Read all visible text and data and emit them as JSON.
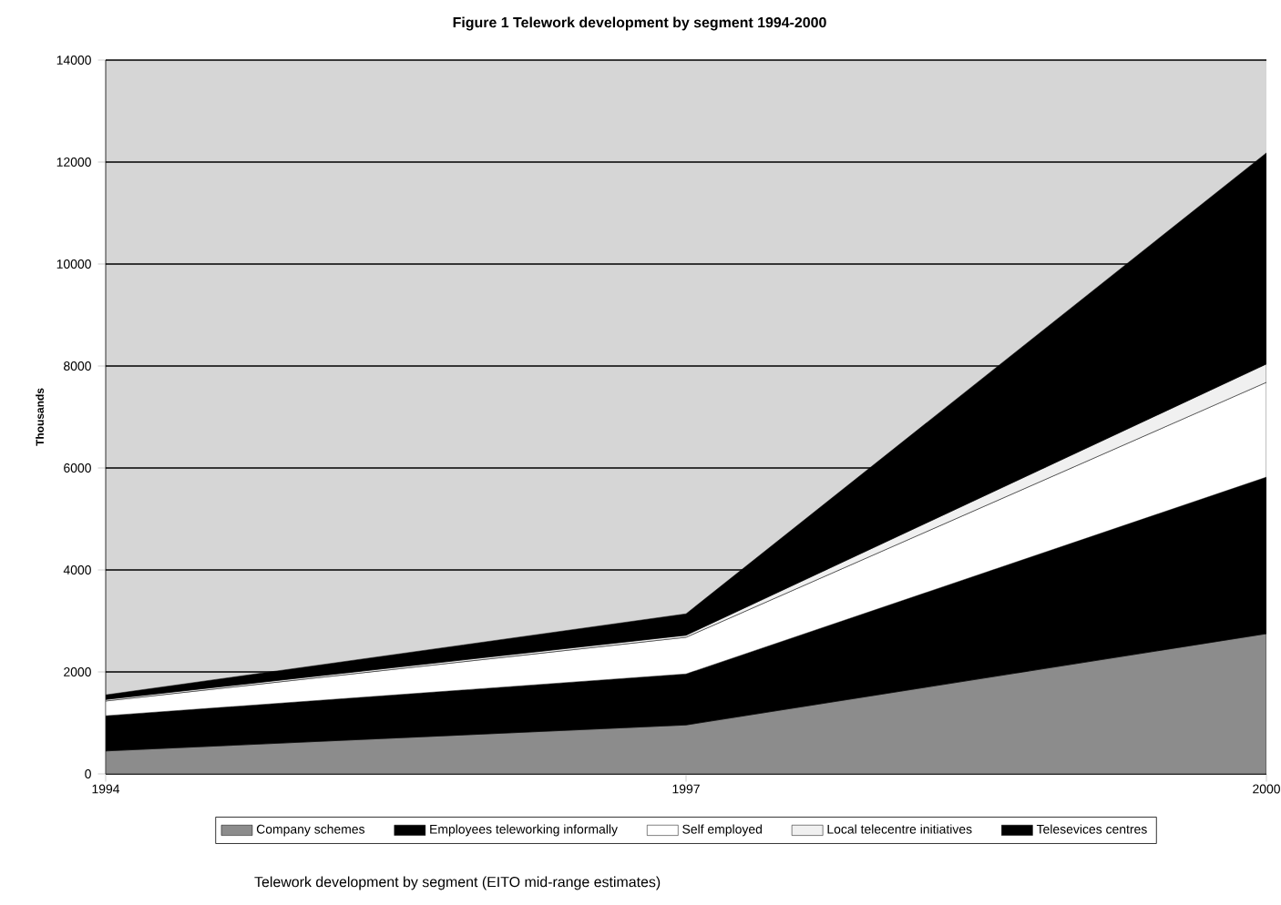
{
  "chart_data": {
    "type": "area",
    "title": "Figure 1      Telework development by segment 1994-2000",
    "ylabel": "Thousands",
    "annotations": [
      "Telework development by segment (EITO mid-range estimates)"
    ],
    "x": [
      1994,
      1997,
      2000
    ],
    "xlim": [
      1994,
      2000
    ],
    "xticks": [
      1994,
      1997,
      2000
    ],
    "ylim": [
      0,
      14000
    ],
    "yticks": [
      0,
      2000,
      4000,
      6000,
      8000,
      10000,
      12000,
      14000
    ],
    "stacked": true,
    "grid": "y",
    "legend": "bottom",
    "series": [
      {
        "name": "Company schemes",
        "color": "#8c8c8c",
        "values": [
          450,
          960,
          2750
        ]
      },
      {
        "name": "Employees teleworking informally",
        "color": "#000000",
        "values": [
          690,
          1000,
          3070
        ]
      },
      {
        "name": "Self employed",
        "color": "#ffffff",
        "values": [
          290,
          720,
          1860
        ]
      },
      {
        "name": "Local telecentre initiatives",
        "color": "#f0f0f0",
        "values": [
          30,
          40,
          360
        ]
      },
      {
        "name": "Telesevices centres",
        "color": "#000000",
        "values": [
          90,
          420,
          4140
        ]
      }
    ]
  }
}
